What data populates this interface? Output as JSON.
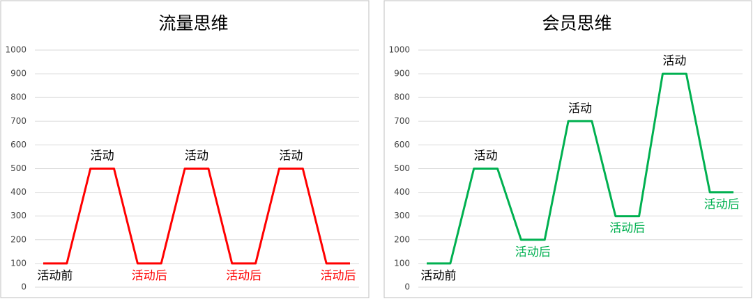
{
  "chart_data": [
    {
      "type": "line",
      "title": "流量思维",
      "categories": [
        null,
        null,
        null,
        null,
        null,
        null,
        null,
        null,
        null,
        null,
        null,
        null,
        null,
        null
      ],
      "values": [
        100,
        100,
        500,
        500,
        100,
        100,
        500,
        500,
        100,
        100,
        500,
        500,
        100,
        100
      ],
      "point_labels": [
        "活动前",
        null,
        "活动",
        null,
        "活动后",
        null,
        "活动",
        null,
        "活动后",
        null,
        "活动",
        null,
        "活动后",
        null
      ],
      "color": "#ff0000",
      "ylim": [
        0,
        1000
      ],
      "yticks": [
        0,
        100,
        200,
        300,
        400,
        500,
        600,
        700,
        800,
        900,
        1000
      ],
      "grid": true
    },
    {
      "type": "line",
      "title": "会员思维",
      "categories": [
        null,
        null,
        null,
        null,
        null,
        null,
        null,
        null,
        null,
        null,
        null,
        null,
        null,
        null
      ],
      "values": [
        100,
        100,
        500,
        500,
        200,
        200,
        700,
        700,
        300,
        300,
        900,
        900,
        400,
        400
      ],
      "point_labels": [
        "活动前",
        null,
        "活动",
        null,
        "活动后",
        null,
        "活动",
        null,
        "活动后",
        null,
        "活动",
        null,
        "活动后",
        null
      ],
      "color": "#00b050",
      "ylim": [
        0,
        1000
      ],
      "yticks": [
        0,
        100,
        200,
        300,
        400,
        500,
        600,
        700,
        800,
        900,
        1000
      ],
      "grid": true
    }
  ]
}
